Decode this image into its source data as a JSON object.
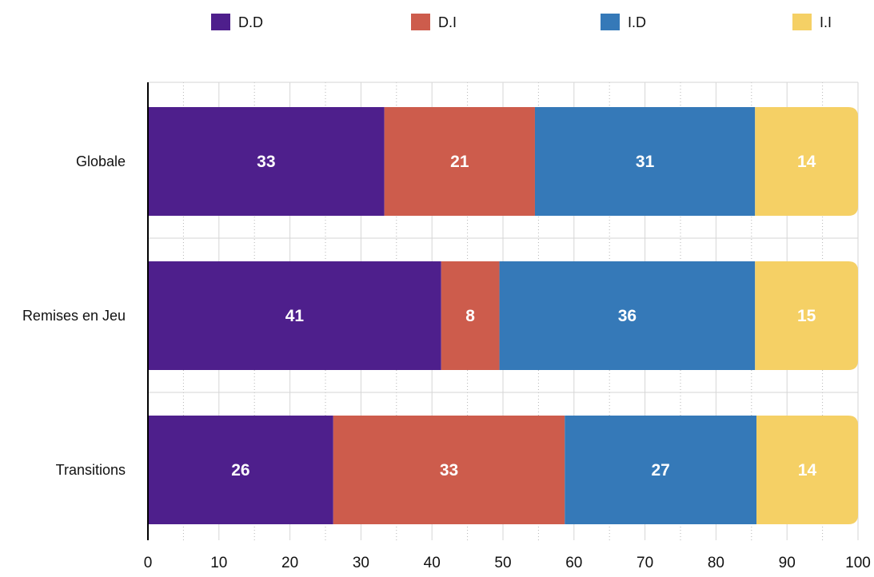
{
  "chart_data": {
    "type": "bar",
    "orientation": "horizontal",
    "stacked": true,
    "categories": [
      "Globale",
      "Remises en Jeu",
      "Transitions"
    ],
    "series": [
      {
        "name": "D.D",
        "color": "#4e1f8c",
        "values": [
          33.3,
          41.3,
          26.1
        ],
        "labels": [
          "33",
          "41",
          "26"
        ]
      },
      {
        "name": "D.I",
        "color": "#cd5c4c",
        "values": [
          21.2,
          8.2,
          32.6
        ],
        "labels": [
          "21",
          "8",
          "33"
        ]
      },
      {
        "name": "I.D",
        "color": "#3579b8",
        "values": [
          31.0,
          36.0,
          27.0
        ],
        "labels": [
          "31",
          "36",
          "27"
        ]
      },
      {
        "name": "I.I",
        "color": "#f5d065",
        "values": [
          14.5,
          14.5,
          14.3
        ],
        "labels": [
          "14",
          "15",
          "14"
        ]
      }
    ],
    "xlim": [
      0,
      100
    ],
    "xticks": [
      0,
      10,
      20,
      30,
      40,
      50,
      60,
      70,
      80,
      90,
      100
    ],
    "legend_position": "top",
    "grid": true
  }
}
